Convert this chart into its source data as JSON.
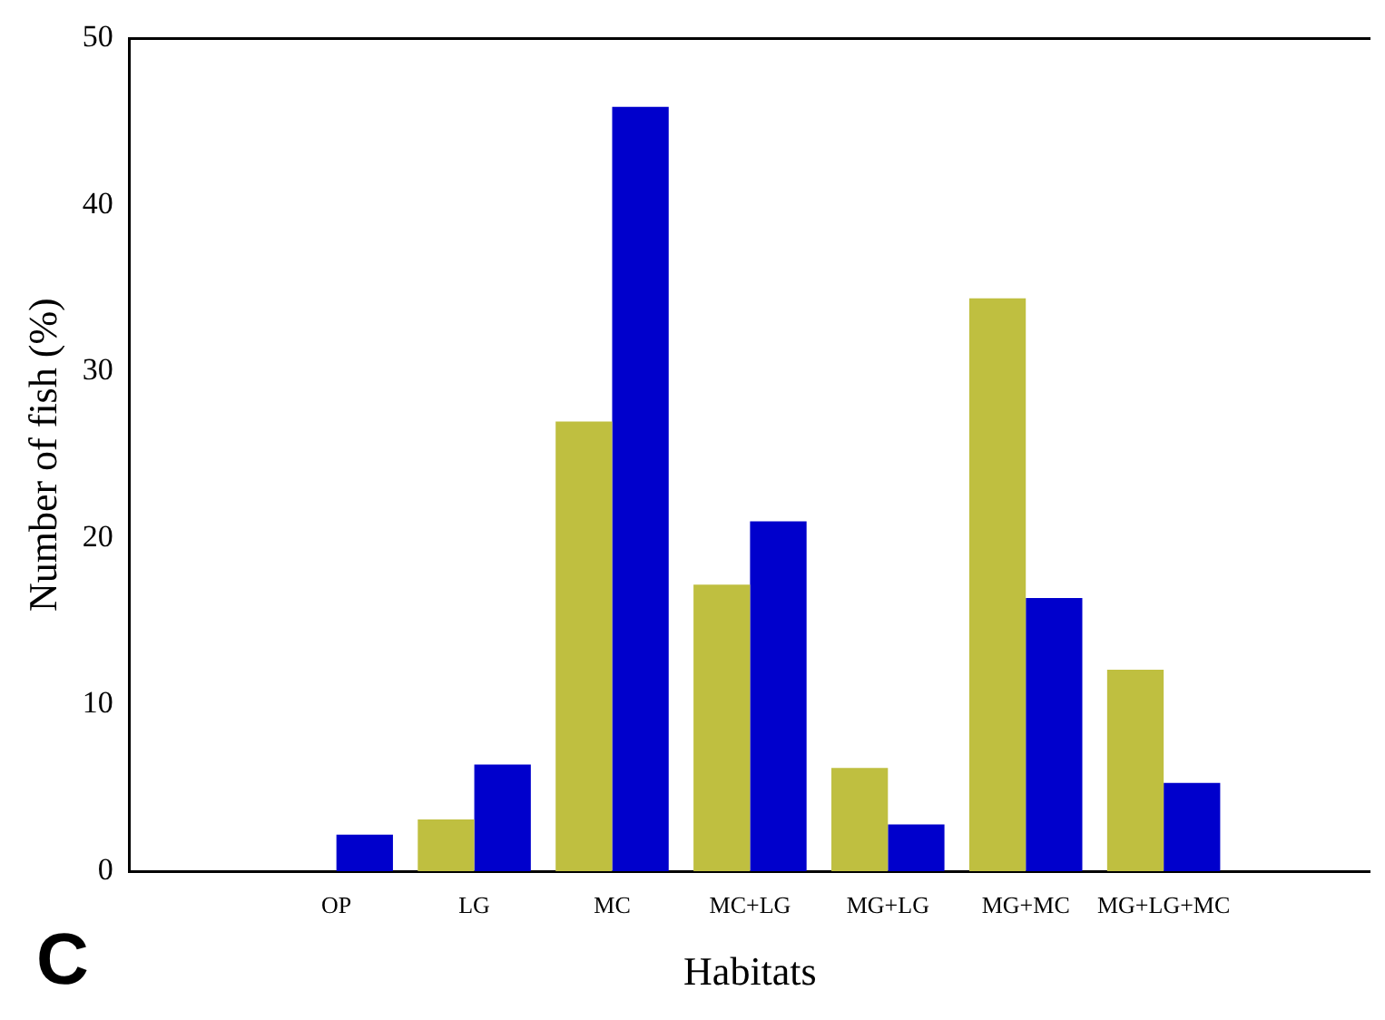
{
  "chart_data": {
    "type": "bar",
    "xlabel": "Habitats",
    "ylabel": "Number of fish (%)",
    "categories": [
      null,
      "OP",
      "LG",
      "MC",
      "MC+LG",
      "MG+LG",
      "MG+MC",
      "MG+LG+MC",
      null
    ],
    "series": [
      {
        "color": "#bfbf40",
        "values": [
          null,
          0,
          3.1,
          27.0,
          17.2,
          6.2,
          34.4,
          12.1,
          null
        ]
      },
      {
        "color": "#0000cc",
        "values": [
          null,
          2.2,
          6.4,
          45.9,
          21.0,
          2.8,
          16.4,
          5.3,
          null
        ]
      }
    ],
    "ylim": [
      0,
      50
    ],
    "yticks": [
      0,
      10,
      20,
      30,
      40,
      50
    ],
    "grid": false,
    "legend": false,
    "annotations": [
      "C"
    ]
  }
}
